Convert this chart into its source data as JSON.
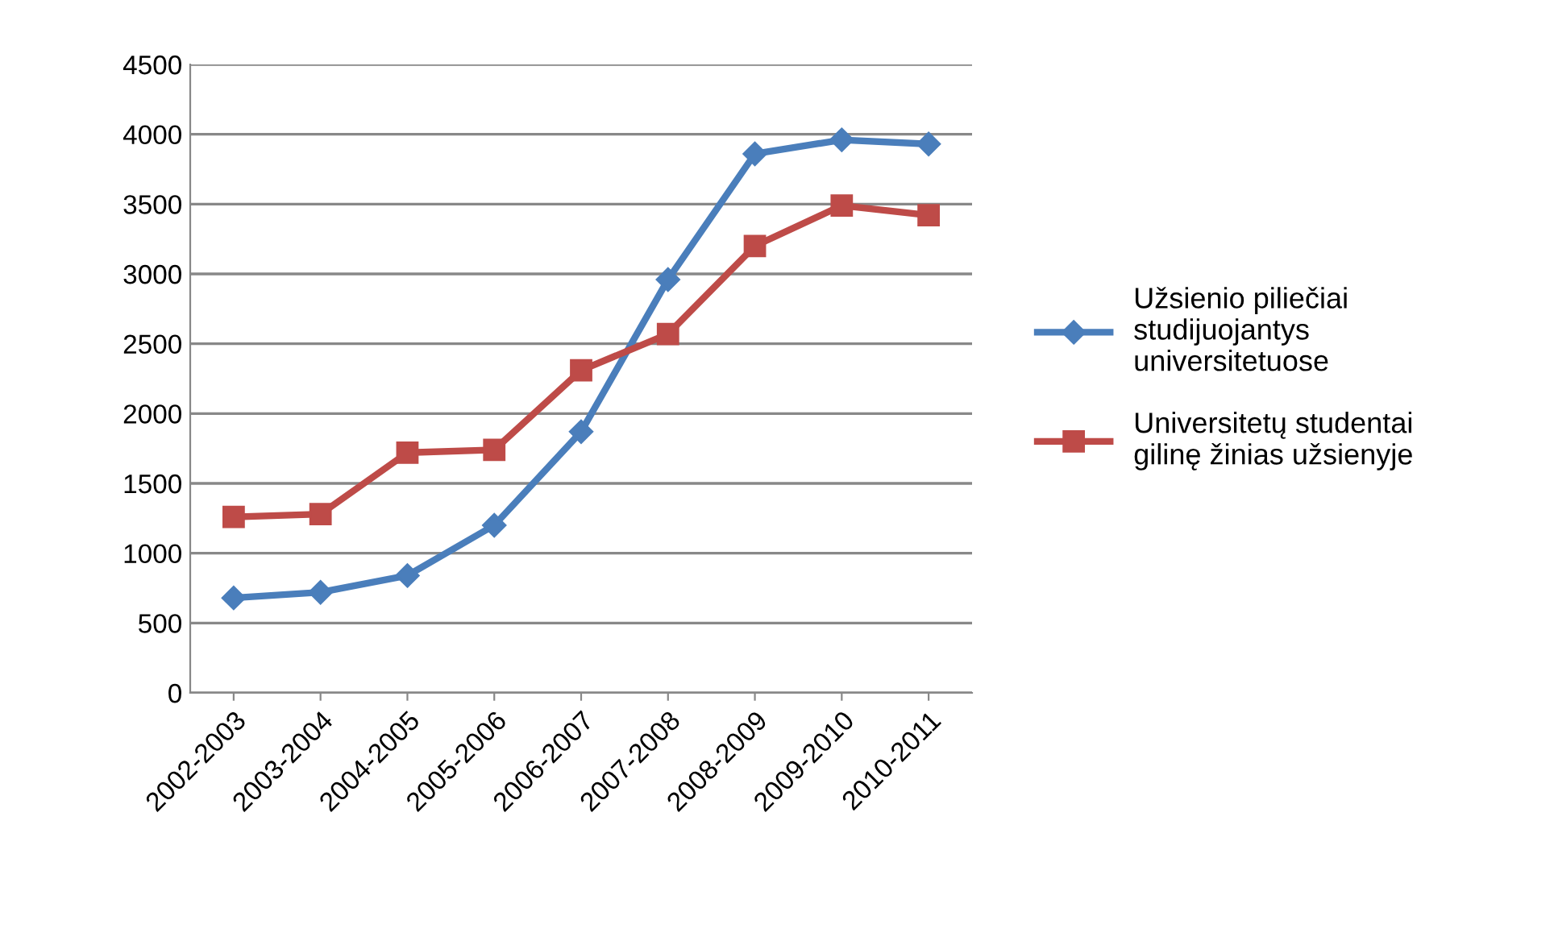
{
  "chart_data": {
    "type": "line",
    "categories": [
      "2002-2003",
      "2003-2004",
      "2004-2005",
      "2005-2006",
      "2006-2007",
      "2007-2008",
      "2008-2009",
      "2009-2010",
      "2010-2011"
    ],
    "series": [
      {
        "name": "Užsienio piliečiai\nstudijuojantys\nuniversitetuose",
        "color": "#4a7ebb",
        "marker": "diamond",
        "values": [
          680,
          720,
          840,
          1200,
          1870,
          2960,
          3860,
          3960,
          3930
        ]
      },
      {
        "name": "Universitetų studentai\ngilinę žinias užsienyje",
        "color": "#be4b48",
        "marker": "square",
        "values": [
          1260,
          1280,
          1720,
          1740,
          2310,
          2570,
          3200,
          3490,
          3420
        ]
      }
    ],
    "ylim": [
      0,
      4500
    ],
    "yticks": [
      0,
      500,
      1000,
      1500,
      2000,
      2500,
      3000,
      3500,
      4000,
      4500
    ],
    "grid": "y",
    "legend": "right",
    "line_style": "solid"
  }
}
